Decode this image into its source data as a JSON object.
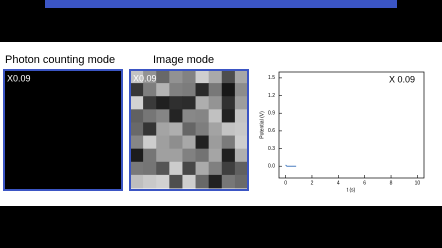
{
  "panels": {
    "photon_label": "Photon counting mode",
    "image_label": "Image mode",
    "photon_zoom": "X0.09",
    "image_zoom": "X0.09"
  },
  "plot": {
    "type": "line",
    "annotation": "X 0.09",
    "y_label": "Potential (V)",
    "x_label": "t (s)",
    "x": [
      0,
      0.1,
      0.8
    ],
    "values": [
      0.02,
      0,
      0
    ],
    "color": "#4a7fc0",
    "xlim": [
      -0.5,
      10.5
    ],
    "ylim": [
      -0.2,
      1.6
    ],
    "xticks": [
      0,
      2,
      4,
      6,
      8,
      10
    ],
    "yticks": [
      {
        "value": 0,
        "label": "0.0"
      },
      0.3,
      0.6,
      0.9,
      1.2,
      1.5
    ]
  }
}
